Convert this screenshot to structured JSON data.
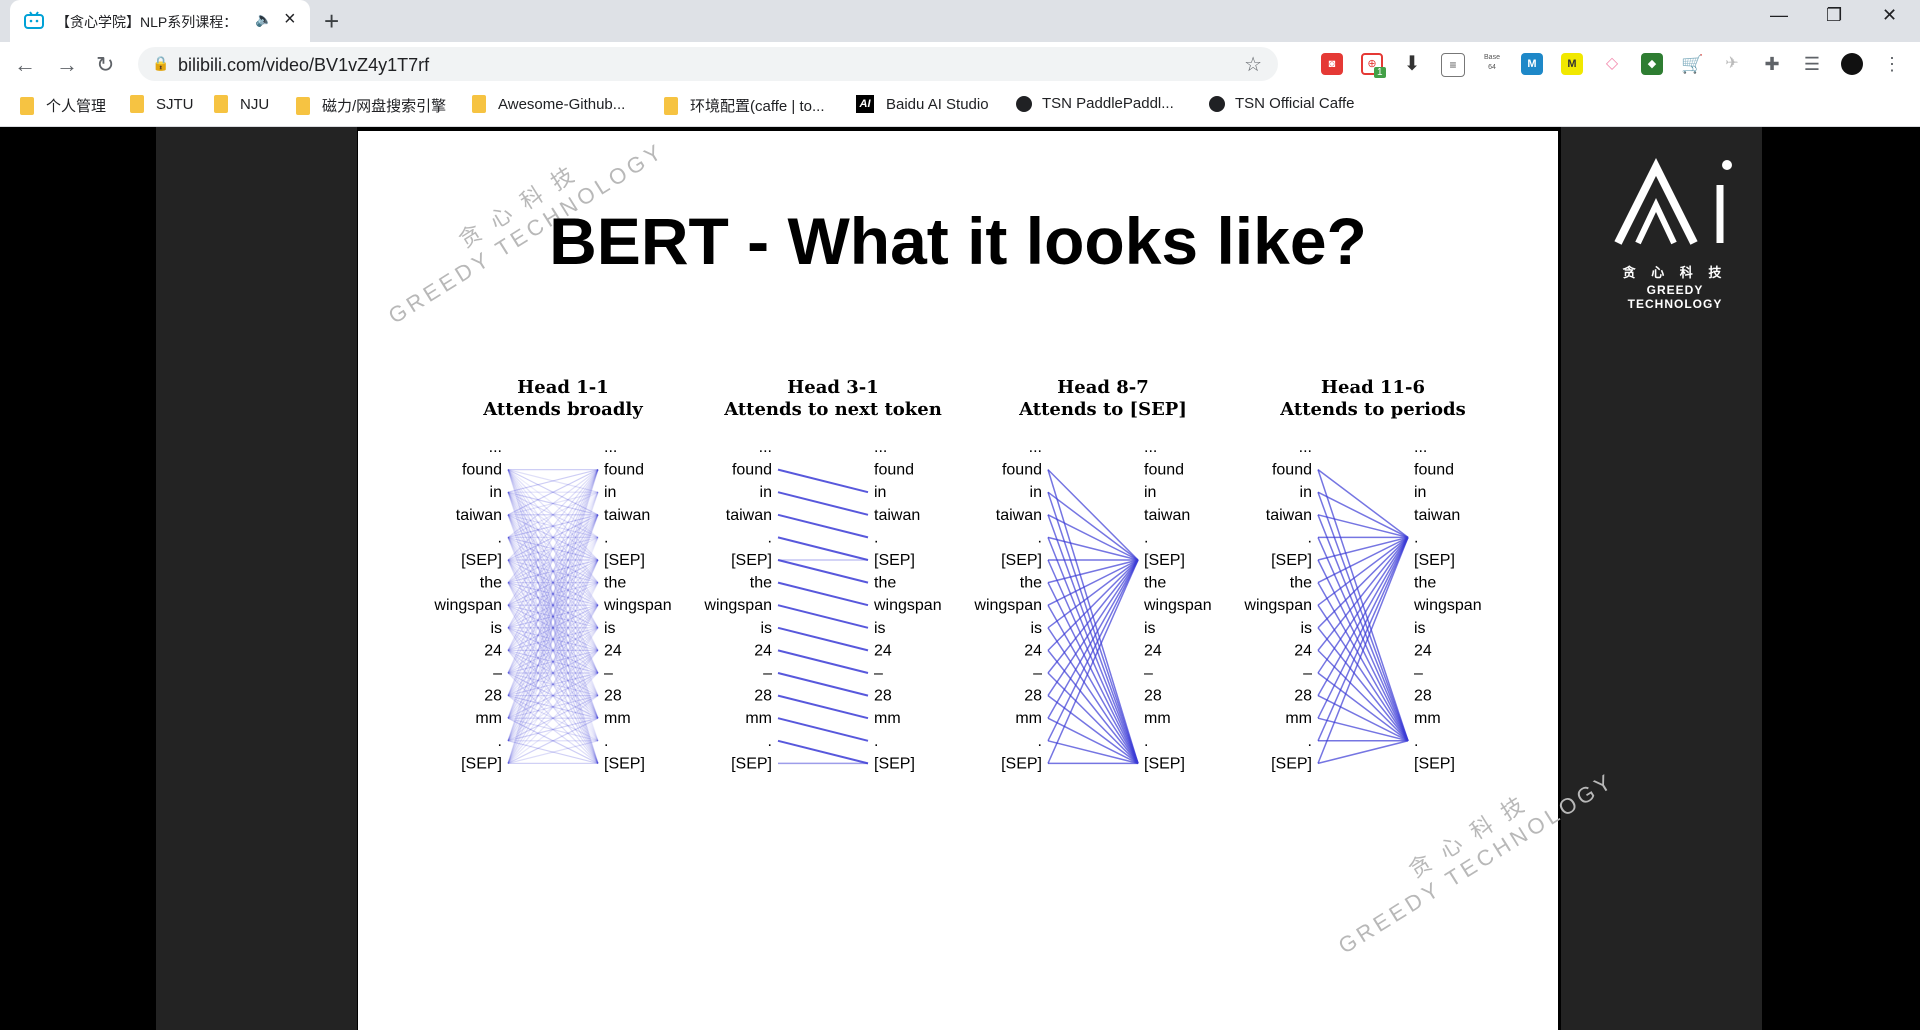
{
  "browser": {
    "tab_title": "【贪心学院】NLP系列课程：",
    "url": "bilibili.com/video/BV1vZ4y1T7rf",
    "extension_badge": "1",
    "extension_label": "Base 64",
    "bookmarks": [
      "个人管理",
      "SJTU",
      "NJU",
      "磁力/网盘搜索引擎",
      "Awesome-Github...",
      "环境配置(caffe | to...",
      "Baidu AI Studio",
      "TSN PaddlePaddl...",
      "TSN Official Caffe"
    ]
  },
  "slide": {
    "title": "BERT - What it looks like?",
    "watermark_cn": "贪 心 科 技",
    "watermark_en": "GREEDY TECHNOLOGY",
    "logo_cn": "贪 心 科 技",
    "logo_en": "GREEDY TECHNOLOGY"
  },
  "chart_data": {
    "type": "attention-diagram",
    "tokens": [
      "...",
      "found",
      "in",
      "taiwan",
      ".",
      "[SEP]",
      "the",
      "wingspan",
      "is",
      "24",
      "–",
      "28",
      "mm",
      ".",
      "[SEP]"
    ],
    "heads": [
      {
        "name": "Head 1-1",
        "label": "Attends broadly",
        "pattern": "broad"
      },
      {
        "name": "Head 3-1",
        "label": "Attends to next token",
        "pattern": "next"
      },
      {
        "name": "Head 8-7",
        "label": "Attends to [SEP]",
        "pattern": "sep"
      },
      {
        "name": "Head 11-6",
        "label": "Attends to periods",
        "pattern": "period"
      }
    ],
    "line_color": "#3b3bd6"
  }
}
